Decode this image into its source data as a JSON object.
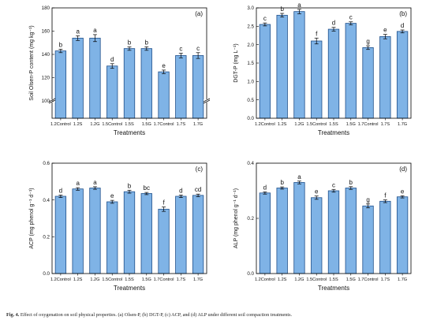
{
  "figure": {
    "caption_label": "Fig. 4.",
    "caption_text": "Effect of oxygenation on soil physical properties. (a) Olsen-P, (b) DGT-P, (c) ACP, and (d) ALP under different soil compaction treatments.",
    "bar_color": "#7fb3e6",
    "bar_stroke": "#1f4f8a"
  },
  "chart_data": [
    {
      "type": "bar",
      "panel_label": "(a)",
      "title": "",
      "xlabel": "Treatments",
      "ylabel": "Soil Olsen-P content (mg kg⁻¹)",
      "axis_break": true,
      "ylim": [
        100,
        180
      ],
      "yticks": [
        "100",
        "120",
        "140",
        "160",
        "180"
      ],
      "ytick_values": [
        100,
        120,
        140,
        160,
        180
      ],
      "categories": [
        "1.2Control",
        "1.2S",
        "1.2G",
        "1.5Control",
        "1.5S",
        "1.5G",
        "1.7Control",
        "1.7S",
        "1.7G"
      ],
      "values": [
        143,
        154,
        154,
        130,
        145,
        145,
        125,
        139,
        139
      ],
      "errors": [
        1.5,
        2,
        3,
        2,
        1.5,
        1.5,
        1.5,
        2,
        2.5
      ],
      "letters": [
        "b",
        "a",
        "a",
        "d",
        "b",
        "b",
        "e",
        "c",
        "c"
      ]
    },
    {
      "type": "bar",
      "panel_label": "(b)",
      "title": "",
      "xlabel": "Treatments",
      "ylabel": "DGT-P (mg L⁻¹)",
      "axis_break": false,
      "ylim": [
        0,
        3.0
      ],
      "yticks": [
        "0.0",
        "0.5",
        "1.0",
        "1.5",
        "2.0",
        "2.5",
        "3.0"
      ],
      "ytick_values": [
        0,
        0.5,
        1.0,
        1.5,
        2.0,
        2.5,
        3.0
      ],
      "categories": [
        "1.2Control",
        "1.2S",
        "1.2G",
        "1.5Control",
        "1.5S",
        "1.5G",
        "1.7Control",
        "1.7S",
        "1.7G"
      ],
      "values": [
        2.55,
        2.8,
        2.9,
        2.1,
        2.42,
        2.58,
        1.92,
        2.22,
        2.36
      ],
      "errors": [
        0.04,
        0.05,
        0.06,
        0.08,
        0.05,
        0.04,
        0.05,
        0.06,
        0.04
      ],
      "letters": [
        "c",
        "b",
        "a",
        "f",
        "d",
        "c",
        "g",
        "e",
        "d"
      ]
    },
    {
      "type": "bar",
      "panel_label": "(c)",
      "title": "",
      "xlabel": "Treatments",
      "ylabel": "ACP (mg phenol g⁻¹ d⁻¹)",
      "axis_break": false,
      "ylim": [
        0,
        0.6
      ],
      "yticks": [
        "0.0",
        "0.2",
        "0.4",
        "0.6"
      ],
      "ytick_values": [
        0,
        0.2,
        0.4,
        0.6
      ],
      "categories": [
        "1.2Control",
        "1.2S",
        "1.2G",
        "1.5Control",
        "1.5S",
        "1.5G",
        "1.7Control",
        "1.7S",
        "1.7G"
      ],
      "values": [
        0.42,
        0.46,
        0.465,
        0.39,
        0.445,
        0.435,
        0.35,
        0.42,
        0.425
      ],
      "errors": [
        0.007,
        0.007,
        0.007,
        0.008,
        0.008,
        0.006,
        0.012,
        0.007,
        0.007
      ],
      "letters": [
        "d",
        "a",
        "a",
        "e",
        "b",
        "bc",
        "f",
        "d",
        "cd"
      ]
    },
    {
      "type": "bar",
      "panel_label": "(d)",
      "title": "",
      "xlabel": "Treatments",
      "ylabel": "ALP (mg phenol g⁻¹ d⁻¹)",
      "axis_break": false,
      "ylim": [
        0,
        0.4
      ],
      "yticks": [
        "0.0",
        "0.2",
        "0.4"
      ],
      "ytick_values": [
        0,
        0.2,
        0.4
      ],
      "categories": [
        "1.2Control",
        "1.2S",
        "1.2G",
        "1.5Control",
        "1.5S",
        "1.5G",
        "1.7Control",
        "1.7S",
        "1.7G"
      ],
      "values": [
        0.292,
        0.31,
        0.33,
        0.275,
        0.3,
        0.31,
        0.245,
        0.262,
        0.278
      ],
      "errors": [
        0.004,
        0.004,
        0.005,
        0.006,
        0.005,
        0.005,
        0.007,
        0.005,
        0.004
      ],
      "letters": [
        "d",
        "b",
        "a",
        "e",
        "c",
        "b",
        "g",
        "f",
        "e"
      ]
    }
  ]
}
